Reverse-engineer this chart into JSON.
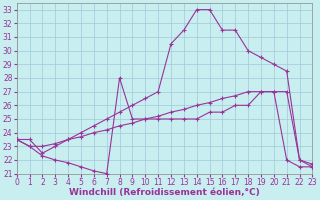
{
  "background_color": "#c8eef0",
  "grid_color": "#a0c8d8",
  "line_color": "#993399",
  "xlim": [
    0,
    23
  ],
  "ylim": [
    21,
    33.5
  ],
  "xlabel": "Windchill (Refroidissement éolien,°C)",
  "xlabel_fontsize": 6.5,
  "xticks": [
    0,
    1,
    2,
    3,
    4,
    5,
    6,
    7,
    8,
    9,
    10,
    11,
    12,
    13,
    14,
    15,
    16,
    17,
    18,
    19,
    20,
    21,
    22,
    23
  ],
  "yticks": [
    21,
    22,
    23,
    24,
    25,
    26,
    27,
    28,
    29,
    30,
    31,
    32,
    33
  ],
  "tick_fontsize": 5.5,
  "curve_top_x": [
    0,
    1,
    2,
    3,
    4,
    5,
    6,
    7,
    8,
    9,
    10,
    11,
    12,
    13,
    14,
    15,
    16,
    17,
    18,
    19,
    20,
    21,
    22,
    23
  ],
  "curve_top_y": [
    23.5,
    23.5,
    22.5,
    23.0,
    23.5,
    24.0,
    24.5,
    25.0,
    25.5,
    26.0,
    26.5,
    27.0,
    30.5,
    31.5,
    33.0,
    33.0,
    31.5,
    31.5,
    30.0,
    29.5,
    29.0,
    28.5,
    22.0,
    21.5
  ],
  "curve_mid_x": [
    0,
    1,
    2,
    3,
    4,
    5,
    6,
    7,
    8,
    9,
    10,
    11,
    12,
    13,
    14,
    15,
    16,
    17,
    18,
    19,
    20,
    21,
    22,
    23
  ],
  "curve_mid_y": [
    23.5,
    23.0,
    23.0,
    23.2,
    23.5,
    23.7,
    24.0,
    24.2,
    24.5,
    24.7,
    25.0,
    25.2,
    25.5,
    25.7,
    26.0,
    26.2,
    26.5,
    26.7,
    27.0,
    27.0,
    27.0,
    27.0,
    22.0,
    21.7
  ],
  "curve_bot_x": [
    0,
    1,
    2,
    3,
    4,
    5,
    6,
    7,
    8,
    9,
    10,
    11,
    12,
    13,
    14,
    15,
    16,
    17,
    18,
    19,
    20,
    21,
    22,
    23
  ],
  "curve_bot_y": [
    23.5,
    23.0,
    22.3,
    22.0,
    21.8,
    21.5,
    21.2,
    21.0,
    28.0,
    25.0,
    25.0,
    25.0,
    25.0,
    25.0,
    25.0,
    25.5,
    25.5,
    26.0,
    26.0,
    27.0,
    27.0,
    22.0,
    21.5,
    21.5
  ]
}
